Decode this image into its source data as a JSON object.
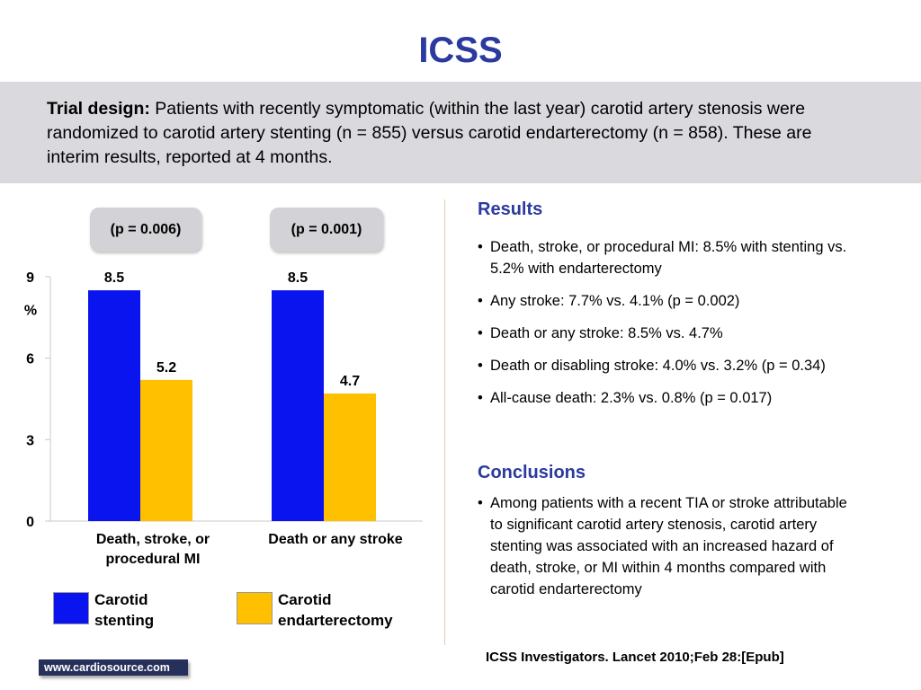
{
  "title": "ICSS",
  "trial_design": {
    "label": "Trial design:",
    "text": " Patients with recently symptomatic (within the last year) carotid artery stenosis were randomized to carotid artery stenting (n = 855) versus carotid endarterectomy (n = 858). These are interim results, reported at 4 months."
  },
  "chart_data": {
    "type": "bar",
    "categories": [
      "Death, stroke, or procedural MI",
      "Death or any stroke"
    ],
    "series": [
      {
        "name": "Carotid stenting",
        "values": [
          8.5,
          8.5
        ],
        "color": "#0a14ee"
      },
      {
        "name": "Carotid endarterectomy",
        "values": [
          5.2,
          4.7
        ],
        "color": "#ffc000"
      }
    ],
    "p_values": [
      "(p = 0.006)",
      "(p = 0.001)"
    ],
    "ylabel": "%",
    "yticks": [
      0,
      3,
      6,
      9
    ],
    "ylim": [
      0,
      9
    ],
    "grid": false,
    "legend_position": "bottom"
  },
  "results": {
    "heading": "Results",
    "items": [
      "Death, stroke, or procedural MI: 8.5% with stenting vs. 5.2% with endarterectomy",
      "Any stroke: 7.7% vs. 4.1% (p = 0.002)",
      "Death or any stroke: 8.5% vs. 4.7%",
      "Death or disabling stroke: 4.0% vs. 3.2% (p = 0.34)",
      "All-cause death: 2.3% vs. 0.8% (p = 0.017)"
    ]
  },
  "conclusions": {
    "heading": "Conclusions",
    "items": [
      "Among patients with a recent TIA or stroke attributable to significant carotid artery stenosis, carotid artery stenting was associated with an increased hazard of death, stroke, or MI within 4 months compared with carotid endarterectomy"
    ]
  },
  "citation": "ICSS Investigators. Lancet 2010;Feb 28:[Epub]",
  "logo_text": "www.cardiosource.com",
  "colors": {
    "title": "#2b3a9f",
    "design_box": "#d9d9de",
    "divider": "#e7c9b3"
  }
}
